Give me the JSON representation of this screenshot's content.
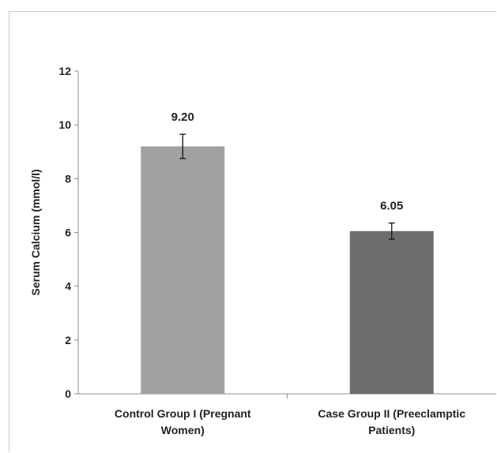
{
  "chart_data": {
    "type": "bar",
    "title": "",
    "xlabel": "",
    "ylabel": "Serum Calcium (mmol/l)",
    "ylim": [
      0,
      12
    ],
    "yticks": [
      "0",
      "2",
      "4",
      "6",
      "8",
      "10",
      "12"
    ],
    "categories": [
      [
        "Control Group I (Pregnant",
        "Women)"
      ],
      [
        "Case Group II (Preeclamptic",
        "Patients)"
      ]
    ],
    "values": [
      9.2,
      6.05
    ],
    "value_labels": [
      "9.20",
      "6.05"
    ],
    "errors": [
      0.45,
      0.3
    ],
    "colors": [
      "#a1a1a3",
      "#6d6d70"
    ],
    "grid": false,
    "legend": "none"
  }
}
